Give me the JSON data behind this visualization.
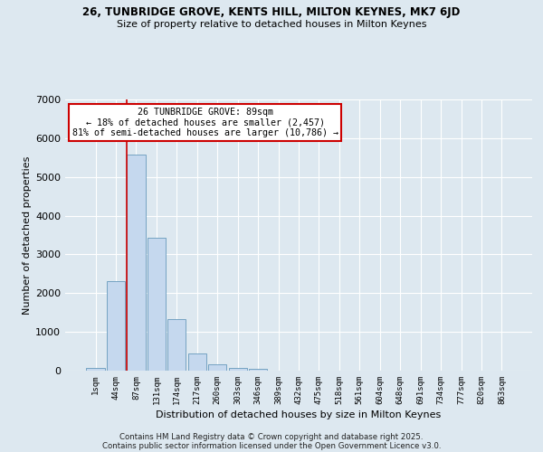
{
  "title1": "26, TUNBRIDGE GROVE, KENTS HILL, MILTON KEYNES, MK7 6JD",
  "title2": "Size of property relative to detached houses in Milton Keynes",
  "xlabel": "Distribution of detached houses by size in Milton Keynes",
  "ylabel": "Number of detached properties",
  "bar_values": [
    75,
    2300,
    5580,
    3430,
    1320,
    450,
    165,
    75,
    50,
    0,
    0,
    0,
    0,
    0,
    0,
    0,
    0,
    0,
    0,
    0,
    0
  ],
  "categories": [
    "1sqm",
    "44sqm",
    "87sqm",
    "131sqm",
    "174sqm",
    "217sqm",
    "260sqm",
    "303sqm",
    "346sqm",
    "389sqm",
    "432sqm",
    "475sqm",
    "518sqm",
    "561sqm",
    "604sqm",
    "648sqm",
    "691sqm",
    "734sqm",
    "777sqm",
    "820sqm",
    "863sqm"
  ],
  "bar_color": "#c5d8ee",
  "bar_edge_color": "#6699bb",
  "vline_color": "#cc0000",
  "annotation_title": "26 TUNBRIDGE GROVE: 89sqm",
  "annotation_line1": "← 18% of detached houses are smaller (2,457)",
  "annotation_line2": "81% of semi-detached houses are larger (10,786) →",
  "annotation_box_color": "#ffffff",
  "annotation_box_edge": "#cc0000",
  "ylim": [
    0,
    7000
  ],
  "yticks": [
    0,
    1000,
    2000,
    3000,
    4000,
    5000,
    6000,
    7000
  ],
  "footer1": "Contains HM Land Registry data © Crown copyright and database right 2025.",
  "footer2": "Contains public sector information licensed under the Open Government Licence v3.0.",
  "bg_color": "#dde8f0",
  "plot_bg_color": "#dde8f0"
}
